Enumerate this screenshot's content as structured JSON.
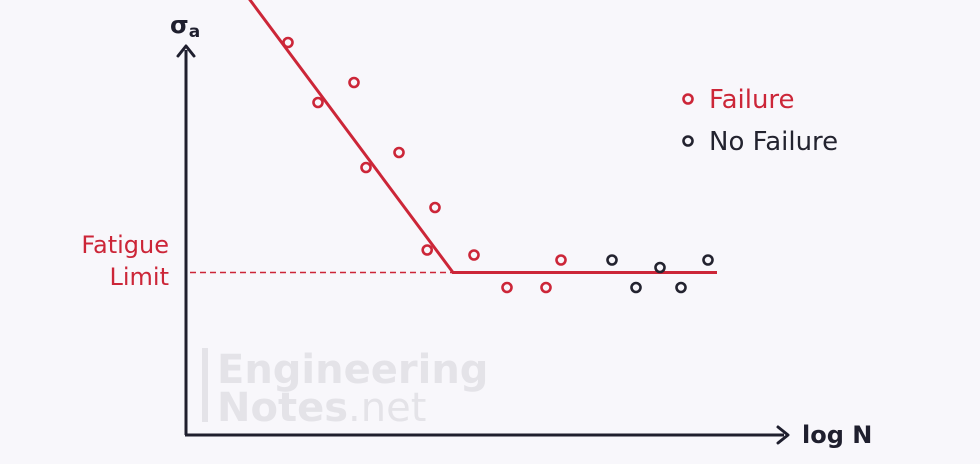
{
  "colors": {
    "failure": "#cc2638",
    "no_failure": "#23232f",
    "axis": "#1f1f2e",
    "watermark": "#e4e3e8"
  },
  "chart_data": {
    "type": "scatter",
    "title": "",
    "ylabel_main": "σ",
    "ylabel_sub": "a",
    "xlabel": "log N",
    "axis_ticks": "none",
    "grid": false,
    "legend_position": "top-right",
    "series": [
      {
        "name": "Failure",
        "color": "#cc2638",
        "points": [
          {
            "x": 1.4,
            "y": 9.1
          },
          {
            "x": 1.7,
            "y": 7.85
          },
          {
            "x": 2.2,
            "y": 6.65
          },
          {
            "x": 2.8,
            "y": 7.05
          },
          {
            "x": 3.0,
            "y": 5.35
          },
          {
            "x": 3.55,
            "y": 5.65
          },
          {
            "x": 4.15,
            "y": 4.55
          },
          {
            "x": 4.02,
            "y": 3.7
          },
          {
            "x": 4.8,
            "y": 3.6
          },
          {
            "x": 5.35,
            "y": 2.95
          },
          {
            "x": 6.0,
            "y": 2.95
          },
          {
            "x": 6.25,
            "y": 3.5
          }
        ]
      },
      {
        "name": "No Failure",
        "color": "#23232f",
        "points": [
          {
            "x": 7.1,
            "y": 3.5
          },
          {
            "x": 7.5,
            "y": 2.95
          },
          {
            "x": 7.9,
            "y": 3.35
          },
          {
            "x": 8.25,
            "y": 2.95
          },
          {
            "x": 8.7,
            "y": 3.5
          }
        ]
      }
    ],
    "fit_line": {
      "color": "#cc2638",
      "points": [
        {
          "x": 0.85,
          "y": 9.05
        },
        {
          "x": 4.45,
          "y": 3.25
        },
        {
          "x": 8.85,
          "y": 3.25
        }
      ]
    },
    "fatigue_limit": {
      "y": 3.25,
      "label_line1": "Fatigue",
      "label_line2": "Limit",
      "style": "dashed"
    }
  },
  "legend": {
    "failure_label": "Failure",
    "no_failure_label": "No Failure"
  },
  "watermark": {
    "line1": "Engineering",
    "line2_bold": "Notes",
    "line2_light": ".net"
  }
}
